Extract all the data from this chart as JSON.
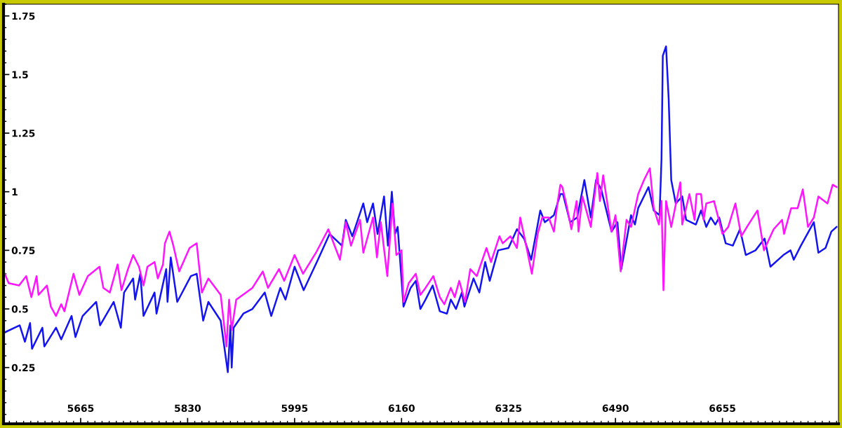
{
  "chart_data": {
    "type": "line",
    "xlim": [
      5546,
      6834
    ],
    "ylim": [
      0.01,
      1.8
    ],
    "xticks": [
      5665,
      5830,
      5995,
      6160,
      6325,
      6490,
      6655
    ],
    "yticks": [
      0.25,
      0.5,
      0.75,
      1,
      1.25,
      1.5,
      1.75
    ],
    "grid": false,
    "marker": "none",
    "line_style": "solid",
    "series": [
      {
        "color": "#1414f0",
        "x": [
          5548,
          5571,
          5579,
          5587,
          5590,
          5606,
          5609,
          5627,
          5635,
          5651,
          5657,
          5668,
          5689,
          5695,
          5716,
          5727,
          5732,
          5746,
          5749,
          5757,
          5762,
          5779,
          5782,
          5797,
          5799,
          5804,
          5814,
          5835,
          5844,
          5854,
          5862,
          5881,
          5892,
          5896,
          5898,
          5901,
          5916,
          5930,
          5949,
          5959,
          5973,
          5981,
          5995,
          6009,
          6031,
          6049,
          6068,
          6074,
          6084,
          6101,
          6107,
          6116,
          6123,
          6133,
          6139,
          6145,
          6150,
          6154,
          6163,
          6174,
          6182,
          6189,
          6197,
          6208,
          6219,
          6230,
          6236,
          6244,
          6253,
          6257,
          6271,
          6280,
          6289,
          6296,
          6309,
          6325,
          6338,
          6349,
          6360,
          6374,
          6381,
          6395,
          6405,
          6409,
          6420,
          6431,
          6442,
          6452,
          6460,
          6468,
          6484,
          6493,
          6499,
          6514,
          6520,
          6525,
          6541,
          6549,
          6558,
          6561,
          6563,
          6568,
          6572,
          6576,
          6583,
          6593,
          6599,
          6614,
          6622,
          6630,
          6637,
          6644,
          6650,
          6660,
          6671,
          6682,
          6691,
          6706,
          6720,
          6729,
          6749,
          6760,
          6765,
          6776,
          6796,
          6803,
          6814,
          6823,
          6831
        ],
        "values": [
          0.4,
          0.43,
          0.36,
          0.44,
          0.33,
          0.42,
          0.34,
          0.42,
          0.37,
          0.47,
          0.38,
          0.47,
          0.53,
          0.43,
          0.53,
          0.42,
          0.57,
          0.63,
          0.54,
          0.65,
          0.47,
          0.57,
          0.48,
          0.67,
          0.53,
          0.72,
          0.53,
          0.64,
          0.65,
          0.45,
          0.53,
          0.45,
          0.23,
          0.43,
          0.25,
          0.42,
          0.48,
          0.5,
          0.57,
          0.47,
          0.59,
          0.54,
          0.68,
          0.58,
          0.71,
          0.82,
          0.77,
          0.88,
          0.81,
          0.95,
          0.87,
          0.95,
          0.82,
          0.98,
          0.77,
          1.0,
          0.82,
          0.85,
          0.51,
          0.59,
          0.62,
          0.5,
          0.54,
          0.6,
          0.49,
          0.48,
          0.54,
          0.5,
          0.57,
          0.51,
          0.63,
          0.57,
          0.7,
          0.62,
          0.75,
          0.76,
          0.84,
          0.8,
          0.71,
          0.92,
          0.87,
          0.9,
          0.99,
          0.99,
          0.87,
          0.89,
          1.05,
          0.89,
          1.05,
          1.01,
          0.83,
          0.87,
          0.67,
          0.9,
          0.86,
          0.93,
          1.02,
          0.92,
          0.9,
          1.14,
          1.58,
          1.62,
          1.4,
          1.05,
          0.95,
          0.98,
          0.88,
          0.86,
          0.92,
          0.85,
          0.89,
          0.86,
          0.89,
          0.78,
          0.77,
          0.84,
          0.73,
          0.75,
          0.8,
          0.68,
          0.73,
          0.75,
          0.71,
          0.77,
          0.87,
          0.74,
          0.76,
          0.83,
          0.85
        ]
      },
      {
        "color": "#ff14ff",
        "x": [
          5548,
          5554,
          5570,
          5581,
          5589,
          5597,
          5600,
          5613,
          5619,
          5627,
          5635,
          5640,
          5654,
          5663,
          5676,
          5694,
          5700,
          5710,
          5722,
          5728,
          5738,
          5746,
          5755,
          5762,
          5768,
          5779,
          5784,
          5792,
          5795,
          5802,
          5808,
          5817,
          5833,
          5844,
          5852,
          5862,
          5881,
          5890,
          5894,
          5898,
          5905,
          5930,
          5946,
          5954,
          5971,
          5979,
          5995,
          6008,
          6028,
          6047,
          6065,
          6074,
          6082,
          6096,
          6101,
          6116,
          6122,
          6128,
          6138,
          6146,
          6152,
          6160,
          6163,
          6171,
          6182,
          6189,
          6197,
          6209,
          6219,
          6226,
          6236,
          6242,
          6249,
          6258,
          6266,
          6276,
          6291,
          6298,
          6311,
          6316,
          6328,
          6338,
          6343,
          6350,
          6361,
          6370,
          6377,
          6387,
          6395,
          6401,
          6405,
          6408,
          6414,
          6422,
          6430,
          6433,
          6439,
          6452,
          6462,
          6466,
          6471,
          6484,
          6490,
          6498,
          6507,
          6514,
          6525,
          6534,
          6543,
          6549,
          6557,
          6561,
          6564,
          6568,
          6576,
          6590,
          6593,
          6604,
          6612,
          6615,
          6622,
          6626,
          6630,
          6642,
          6655,
          6664,
          6675,
          6684,
          6695,
          6709,
          6719,
          6734,
          6747,
          6750,
          6761,
          6771,
          6779,
          6787,
          6796,
          6803,
          6817,
          6825,
          6831
        ],
        "values": [
          0.65,
          0.61,
          0.6,
          0.64,
          0.55,
          0.64,
          0.56,
          0.6,
          0.51,
          0.47,
          0.52,
          0.49,
          0.65,
          0.56,
          0.64,
          0.68,
          0.59,
          0.57,
          0.69,
          0.58,
          0.67,
          0.73,
          0.68,
          0.6,
          0.68,
          0.7,
          0.63,
          0.69,
          0.78,
          0.83,
          0.77,
          0.66,
          0.76,
          0.78,
          0.57,
          0.63,
          0.56,
          0.34,
          0.54,
          0.41,
          0.54,
          0.59,
          0.66,
          0.59,
          0.67,
          0.62,
          0.73,
          0.65,
          0.74,
          0.84,
          0.71,
          0.87,
          0.77,
          0.88,
          0.74,
          0.89,
          0.72,
          0.87,
          0.64,
          0.95,
          0.73,
          0.75,
          0.53,
          0.61,
          0.65,
          0.56,
          0.59,
          0.64,
          0.55,
          0.52,
          0.59,
          0.55,
          0.62,
          0.53,
          0.67,
          0.64,
          0.76,
          0.7,
          0.81,
          0.78,
          0.81,
          0.76,
          0.89,
          0.8,
          0.65,
          0.82,
          0.89,
          0.89,
          0.83,
          0.96,
          1.03,
          1.02,
          0.95,
          0.84,
          0.96,
          0.83,
          0.98,
          0.85,
          1.08,
          0.96,
          1.07,
          0.83,
          0.9,
          0.66,
          0.88,
          0.85,
          0.99,
          1.05,
          1.1,
          0.93,
          0.86,
          0.96,
          0.58,
          0.96,
          0.85,
          1.04,
          0.86,
          0.99,
          0.88,
          0.99,
          0.99,
          0.88,
          0.95,
          0.96,
          0.82,
          0.85,
          0.95,
          0.81,
          0.86,
          0.92,
          0.75,
          0.84,
          0.88,
          0.82,
          0.93,
          0.93,
          1.01,
          0.85,
          0.89,
          0.98,
          0.95,
          1.03,
          1.02
        ]
      }
    ]
  }
}
